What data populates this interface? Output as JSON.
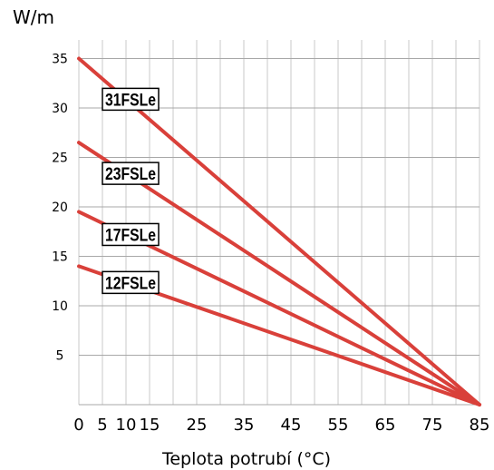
{
  "chart_data": {
    "type": "line",
    "xlabel": "Teplota potrubí (°C)",
    "ylabel": "W/m",
    "xlim": [
      0,
      85
    ],
    "ylim": [
      0,
      36
    ],
    "x_ticks": [
      0,
      5,
      10,
      15,
      25,
      35,
      45,
      55,
      65,
      75,
      85
    ],
    "x_tick_labels": [
      "0",
      "5",
      "10",
      "15",
      "25",
      "35",
      "45",
      "55",
      "65",
      "75",
      "85"
    ],
    "y_ticks": [
      5,
      10,
      15,
      20,
      25,
      30,
      35
    ],
    "y_tick_labels": [
      "5",
      "10",
      "15",
      "20",
      "25",
      "30",
      "35"
    ],
    "grid": true,
    "series": [
      {
        "name": "31FSLe",
        "x": [
          0,
          85
        ],
        "values": [
          35,
          0
        ],
        "label_at_x": 10
      },
      {
        "name": "23FSLe",
        "x": [
          0,
          85
        ],
        "values": [
          26.5,
          0
        ],
        "label_at_x": 10
      },
      {
        "name": "17FSLe",
        "x": [
          0,
          85
        ],
        "values": [
          19.5,
          0
        ],
        "label_at_x": 10
      },
      {
        "name": "12FSLe",
        "x": [
          0,
          85
        ],
        "values": [
          14,
          0
        ],
        "label_at_x": 10
      }
    ],
    "line_color": "#d9403a"
  }
}
